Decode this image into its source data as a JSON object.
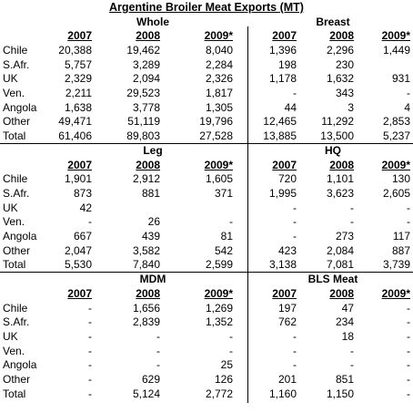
{
  "title": "Argentine Broiler Meat Exports (MT)",
  "blocks": [
    {
      "row_labels": [
        "Chile",
        "S.Afr.",
        "UK",
        "Ven.",
        "Angola",
        "Other",
        "Total"
      ],
      "left": {
        "name": "Whole",
        "years": [
          "2007",
          "2008",
          "2009*"
        ],
        "rows": [
          [
            "20,388",
            "19,462",
            "8,040"
          ],
          [
            "5,757",
            "3,289",
            "2,284"
          ],
          [
            "2,329",
            "2,094",
            "2,326"
          ],
          [
            "2,211",
            "29,523",
            "1,817"
          ],
          [
            "1,638",
            "3,778",
            "1,305"
          ],
          [
            "49,471",
            "51,119",
            "19,796"
          ],
          [
            "61,406",
            "89,803",
            "27,528"
          ]
        ]
      },
      "right": {
        "name": "Breast",
        "years": [
          "2007",
          "2008",
          "2009*"
        ],
        "rows": [
          [
            "1,396",
            "2,296",
            "1,449"
          ],
          [
            "198",
            "230",
            null
          ],
          [
            "1,178",
            "1,632",
            "931"
          ],
          [
            "-",
            "343",
            "-"
          ],
          [
            "44",
            "3",
            "4"
          ],
          [
            "12,465",
            "11,292",
            "2,853"
          ],
          [
            "13,885",
            "13,500",
            "5,237"
          ]
        ]
      }
    },
    {
      "row_labels": [
        "Chile",
        "S.Afr.",
        "UK",
        "Ven.",
        "Angola",
        "Other",
        "Total"
      ],
      "left": {
        "name": "Leg",
        "years": [
          "2007",
          "2008",
          "2009*"
        ],
        "rows": [
          [
            "1,901",
            "2,912",
            "1,605"
          ],
          [
            "873",
            "881",
            "371"
          ],
          [
            "42",
            null,
            null
          ],
          [
            "-",
            "26",
            "-"
          ],
          [
            "667",
            "439",
            "81"
          ],
          [
            "2,047",
            "3,582",
            "542"
          ],
          [
            "5,530",
            "7,840",
            "2,599"
          ]
        ]
      },
      "right": {
        "name": "HQ",
        "years": [
          "2007",
          "2008",
          "2009*"
        ],
        "rows": [
          [
            "720",
            "1,101",
            "130"
          ],
          [
            "1,995",
            "3,623",
            "2,605"
          ],
          [
            "-",
            "-",
            "-"
          ],
          [
            "-",
            "-",
            "-"
          ],
          [
            "-",
            "273",
            "117"
          ],
          [
            "423",
            "2,084",
            "887"
          ],
          [
            "3,138",
            "7,081",
            "3,739"
          ]
        ]
      }
    },
    {
      "row_labels": [
        "Chile",
        "S.Afr.",
        "UK",
        "Ven.",
        "Angola",
        "Other",
        "Total"
      ],
      "left": {
        "name": "MDM",
        "years": [
          "2007",
          "2008",
          "2009*"
        ],
        "rows": [
          [
            "-",
            "1,656",
            "1,269"
          ],
          [
            "-",
            "2,839",
            "1,352"
          ],
          [
            "-",
            "-",
            "-"
          ],
          [
            "-",
            "-",
            "-"
          ],
          [
            "-",
            "-",
            "25"
          ],
          [
            "-",
            "629",
            "126"
          ],
          [
            "-",
            "5,124",
            "2,772"
          ]
        ]
      },
      "right": {
        "name": "BLS Meat",
        "years": [
          "2007",
          "2008",
          "2009*"
        ],
        "rows": [
          [
            "197",
            "47",
            "-"
          ],
          [
            "762",
            "234",
            "-"
          ],
          [
            "-",
            "18",
            "-"
          ],
          [
            "-",
            "-",
            "-"
          ],
          [
            "-",
            "-",
            "-"
          ],
          [
            "201",
            "851",
            "-"
          ],
          [
            "1,160",
            "1,150",
            "-"
          ]
        ]
      }
    }
  ]
}
